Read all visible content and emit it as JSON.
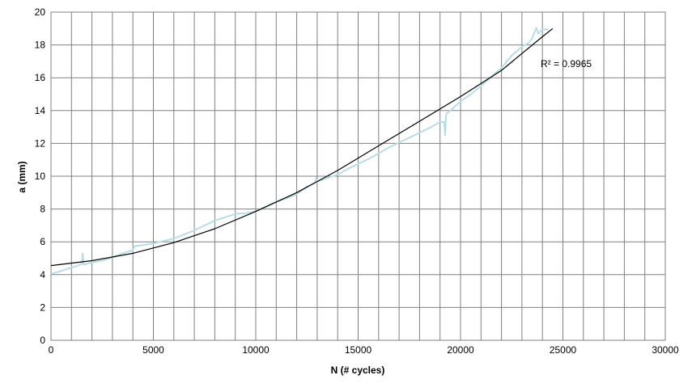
{
  "chart_data": {
    "type": "scatter",
    "xlabel": "N (# cycles)",
    "ylabel": "a (mm)",
    "xlim": [
      0,
      30000
    ],
    "ylim": [
      0,
      20
    ],
    "x_ticks": [
      0,
      5000,
      10000,
      15000,
      20000,
      25000,
      30000
    ],
    "y_ticks": [
      0,
      2,
      4,
      6,
      8,
      10,
      12,
      14,
      16,
      18,
      20
    ],
    "grid": true,
    "annotation": "R² = 0.9965",
    "colors": {
      "data": "#b7dde6",
      "trend": "#000000",
      "grid": "#808080"
    },
    "series": [
      {
        "kind": "measured",
        "x": [
          0,
          300,
          800,
          1200,
          1500,
          1550,
          1600,
          1700,
          2000,
          2500,
          3000,
          3500,
          4000,
          4100,
          4500,
          5000,
          5500,
          6000,
          6500,
          7000,
          7500,
          8000,
          8500,
          9000,
          9500,
          10000,
          10500,
          11000,
          11500,
          12000,
          12500,
          12900,
          12950,
          13000,
          13500,
          14000,
          14500,
          15000,
          15500,
          16000,
          16500,
          17000,
          17500,
          18000,
          18500,
          19000,
          19200,
          19250,
          19300,
          19500,
          20000,
          20500,
          21000,
          21500,
          22000,
          22500,
          23000,
          23300,
          23500,
          23700,
          23800,
          24000,
          24300
        ],
        "y": [
          4.05,
          4.15,
          4.35,
          4.5,
          4.65,
          5.3,
          4.6,
          4.65,
          4.75,
          4.85,
          5.05,
          5.3,
          5.5,
          5.75,
          5.8,
          5.9,
          6.05,
          6.2,
          6.45,
          6.7,
          7.0,
          7.3,
          7.5,
          7.7,
          7.75,
          7.85,
          8.15,
          8.45,
          8.65,
          8.9,
          9.35,
          9.6,
          9.9,
          9.65,
          9.9,
          10.1,
          10.45,
          10.75,
          11.05,
          11.4,
          11.75,
          12.05,
          12.35,
          12.65,
          12.95,
          13.3,
          13.3,
          12.5,
          13.8,
          14.0,
          14.55,
          15.0,
          15.5,
          16.05,
          16.6,
          17.35,
          17.9,
          18.1,
          18.4,
          19.05,
          18.7,
          18.95,
          18.95
        ]
      },
      {
        "kind": "trendline",
        "x": [
          0,
          2000,
          4000,
          6000,
          8000,
          10000,
          12000,
          14000,
          16000,
          18000,
          20000,
          22000,
          24000,
          24500
        ],
        "y": [
          4.55,
          4.85,
          5.3,
          5.95,
          6.8,
          7.85,
          9.0,
          10.35,
          11.85,
          13.35,
          14.85,
          16.45,
          18.5,
          19.0
        ]
      }
    ]
  }
}
